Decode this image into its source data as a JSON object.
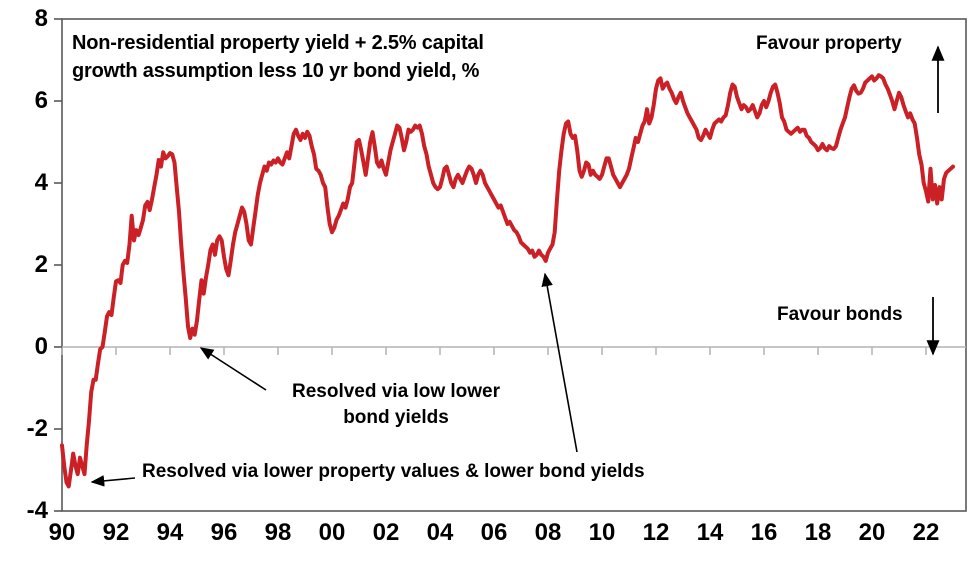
{
  "title": {
    "line1": "Non-residential property yield + 2.5% capital",
    "line2": "growth assumption less 10 yr bond yield, %"
  },
  "annotations": {
    "favour_property": "Favour property",
    "favour_bonds": "Favour bonds",
    "resolved_bond_yields_line1": "Resolved via low lower",
    "resolved_bond_yields_line2": "bond yields",
    "resolved_property_values": "Resolved via lower property values & lower bond yields"
  },
  "colors": {
    "line": "#cb2026",
    "zero_gridline": "#b3b3b3",
    "frame": "#595959",
    "text": "#000000"
  },
  "chart_data": {
    "type": "line",
    "title": "Non-residential property yield + 2.5% capital growth assumption less 10 yr bond yield, %",
    "xlabel": "",
    "ylabel": "%",
    "ylim": [
      -4,
      8
    ],
    "yticks": [
      8,
      6,
      4,
      2,
      0,
      -2,
      -4
    ],
    "ytick_labels": [
      "8",
      "6",
      "4",
      "2",
      "0",
      "-2",
      "-4"
    ],
    "xlim": [
      1990,
      2023.5
    ],
    "xticks": [
      1990,
      1992,
      1994,
      1996,
      1998,
      2000,
      2002,
      2004,
      2006,
      2008,
      2010,
      2012,
      2014,
      2016,
      2018,
      2020,
      2022
    ],
    "xtick_labels": [
      "90",
      "92",
      "94",
      "96",
      "98",
      "00",
      "02",
      "04",
      "06",
      "08",
      "10",
      "12",
      "14",
      "16",
      "18",
      "20",
      "22"
    ],
    "grid": "horizontal zero line only",
    "legend": "none",
    "annotation_texts": [
      "Favour property (up arrow, top right)",
      "Favour bonds (down arrow, near zero line right)",
      "Resolved via low lower bond yields (arrow to 1995 dip)",
      "Resolved via lower property values & lower bond yields (arrows to 1990-91 trough and 2008 dip)"
    ],
    "series": [
      {
        "name": "Non-residential property yield + 2.5% capital growth assumption less 10 yr bond yield, %",
        "color": "#cb2026",
        "x_start": 1990.0,
        "x_step": 0.083333,
        "values": [
          -2.4,
          -2.9,
          -3.3,
          -3.4,
          -3.0,
          -2.6,
          -2.9,
          -3.1,
          -2.7,
          -2.9,
          -3.1,
          -2.4,
          -1.8,
          -1.1,
          -0.8,
          -0.8,
          -0.4,
          -0.05,
          0.0,
          0.35,
          0.75,
          0.85,
          0.78,
          1.2,
          1.6,
          1.63,
          1.56,
          2.0,
          2.1,
          2.05,
          2.5,
          3.2,
          2.6,
          2.85,
          2.73,
          2.9,
          3.1,
          3.45,
          3.54,
          3.34,
          3.6,
          3.9,
          4.2,
          4.56,
          4.4,
          4.75,
          4.6,
          4.65,
          4.73,
          4.7,
          4.5,
          3.9,
          3.3,
          2.5,
          1.8,
          1.2,
          0.5,
          0.22,
          0.45,
          0.3,
          0.65,
          1.15,
          1.63,
          1.3,
          1.7,
          2.0,
          2.37,
          2.5,
          2.25,
          2.6,
          2.7,
          2.6,
          2.2,
          1.9,
          1.75,
          2.1,
          2.5,
          2.8,
          3.0,
          3.2,
          3.4,
          3.3,
          3.0,
          2.6,
          2.5,
          2.9,
          3.3,
          3.7,
          4.0,
          4.2,
          4.4,
          4.3,
          4.5,
          4.45,
          4.55,
          4.5,
          4.6,
          4.5,
          4.45,
          4.6,
          4.75,
          4.6,
          4.9,
          5.2,
          5.3,
          5.15,
          5.05,
          5.2,
          5.1,
          5.25,
          5.15,
          4.9,
          4.7,
          4.35,
          4.3,
          4.2,
          4.0,
          3.9,
          3.4,
          3.0,
          2.8,
          2.9,
          3.1,
          3.2,
          3.35,
          3.5,
          3.4,
          3.6,
          3.9,
          4.0,
          4.5,
          5.0,
          5.05,
          4.8,
          4.5,
          4.2,
          4.6,
          5.0,
          5.24,
          4.9,
          4.5,
          4.4,
          4.55,
          4.35,
          4.2,
          4.5,
          4.8,
          5.0,
          5.2,
          5.4,
          5.35,
          5.1,
          4.8,
          5.0,
          5.3,
          5.25,
          5.3,
          5.4,
          5.35,
          5.4,
          5.2,
          4.9,
          4.7,
          4.4,
          4.2,
          4.0,
          3.9,
          3.85,
          3.9,
          4.1,
          4.35,
          4.4,
          4.2,
          4.0,
          3.9,
          4.1,
          4.2,
          4.1,
          4.0,
          4.15,
          4.3,
          4.4,
          4.35,
          4.2,
          4.0,
          4.2,
          4.3,
          4.2,
          4.0,
          3.9,
          3.8,
          3.7,
          3.6,
          3.5,
          3.4,
          3.45,
          3.3,
          3.15,
          3.0,
          3.05,
          2.95,
          2.85,
          2.8,
          2.7,
          2.55,
          2.5,
          2.45,
          2.4,
          2.3,
          2.35,
          2.2,
          2.25,
          2.35,
          2.25,
          2.2,
          2.1,
          2.3,
          2.4,
          2.5,
          2.8,
          3.6,
          4.3,
          4.8,
          5.2,
          5.45,
          5.5,
          5.2,
          5.1,
          5.15,
          4.8,
          4.3,
          4.15,
          4.3,
          4.5,
          4.45,
          4.2,
          4.3,
          4.2,
          4.15,
          4.1,
          4.2,
          4.4,
          4.6,
          4.6,
          4.4,
          4.2,
          4.1,
          4.0,
          3.9,
          4.0,
          4.1,
          4.2,
          4.35,
          4.6,
          4.85,
          5.1,
          5.0,
          5.2,
          5.4,
          5.5,
          5.8,
          5.45,
          5.6,
          5.9,
          6.3,
          6.5,
          6.55,
          6.3,
          6.4,
          6.45,
          6.3,
          6.2,
          6.05,
          5.95,
          6.1,
          6.2,
          6.0,
          5.85,
          5.7,
          5.6,
          5.5,
          5.4,
          5.3,
          5.1,
          5.05,
          5.15,
          5.3,
          5.2,
          5.1,
          5.3,
          5.45,
          5.5,
          5.55,
          5.5,
          5.6,
          5.65,
          5.9,
          6.2,
          6.4,
          6.35,
          6.1,
          5.95,
          5.8,
          5.9,
          5.85,
          5.75,
          5.8,
          5.9,
          5.75,
          5.6,
          5.7,
          5.9,
          6.0,
          5.85,
          6.0,
          6.2,
          6.35,
          6.4,
          6.2,
          5.95,
          5.6,
          5.5,
          5.3,
          5.25,
          5.2,
          5.25,
          5.3,
          5.35,
          5.25,
          5.3,
          5.3,
          5.15,
          5.1,
          5.0,
          4.95,
          4.9,
          4.8,
          4.85,
          4.95,
          4.85,
          4.8,
          4.9,
          4.85,
          4.83,
          4.9,
          5.1,
          5.3,
          5.45,
          5.6,
          5.85,
          6.1,
          6.3,
          6.38,
          6.25,
          6.18,
          6.2,
          6.3,
          6.45,
          6.5,
          6.55,
          6.6,
          6.5,
          6.55,
          6.63,
          6.6,
          6.55,
          6.4,
          6.3,
          6.15,
          6.0,
          5.8,
          6.0,
          6.2,
          6.1,
          5.9,
          5.75,
          5.6,
          5.7,
          5.55,
          5.45,
          5.1,
          4.7,
          4.45,
          4.0,
          3.8,
          3.55,
          4.35,
          3.6,
          3.95,
          3.5,
          3.9,
          3.6,
          4.1,
          4.25,
          4.3,
          4.35,
          4.4
        ]
      }
    ]
  }
}
